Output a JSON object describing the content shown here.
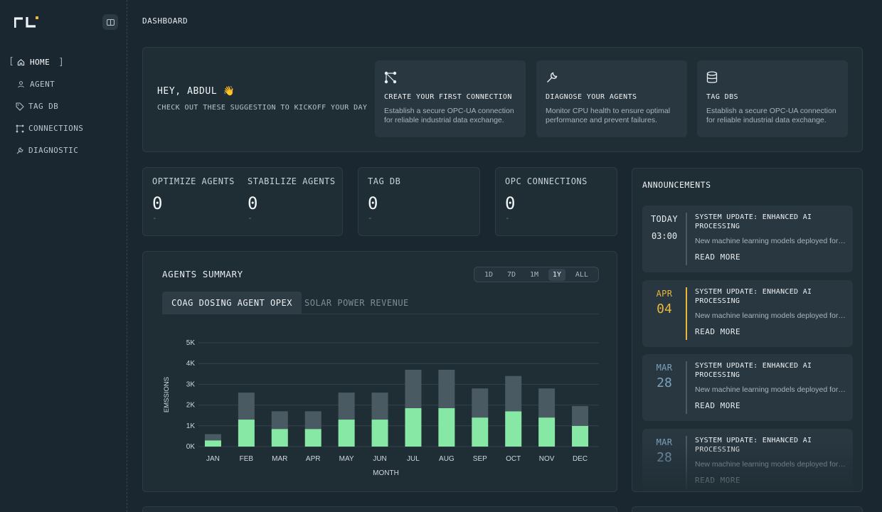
{
  "sidebar": {
    "items": [
      {
        "label": "HOME",
        "icon": "home-icon",
        "active": true
      },
      {
        "label": "AGENT",
        "icon": "user-icon"
      },
      {
        "label": "TAG DB",
        "icon": "tag-icon"
      },
      {
        "label": "CONNECTIONS",
        "icon": "connections-icon"
      },
      {
        "label": "DIAGNOSTIC",
        "icon": "wrench-icon"
      }
    ],
    "active_bracket_open": "[",
    "active_bracket_close": "]"
  },
  "breadcrumb": "DASHBOARD",
  "hero": {
    "greeting": "HEY, ABDUL 👋",
    "subtitle": "CHECK OUT THESE SUGGESTION TO KICKOFF YOUR DAY",
    "suggestions": [
      {
        "title": "CREATE YOUR FIRST CONNECTION",
        "desc": "Establish a secure OPC-UA connection for reliable industrial data exchange.",
        "icon": "nodes-icon"
      },
      {
        "title": "DIAGNOSE YOUR AGENTS",
        "desc": "Monitor CPU health to ensure optimal performance and prevent failures.",
        "icon": "wrench-icon"
      },
      {
        "title": "TAG DBS",
        "desc": "Establish a secure OPC-UA connection for reliable industrial data exchange.",
        "icon": "database-icon"
      }
    ]
  },
  "stats": {
    "optimize": {
      "label": "OPTIMIZE AGENTS",
      "value": "0",
      "delta": "-"
    },
    "stabilize": {
      "label": "STABILIZE AGENTS",
      "value": "0",
      "delta": "-"
    },
    "tagdb": {
      "label": "TAG DB",
      "value": "0",
      "delta": "-"
    },
    "opc": {
      "label": "OPC CONNECTIONS",
      "value": "0",
      "delta": "-"
    }
  },
  "summary": {
    "title": "AGENTS SUMMARY",
    "ranges": [
      "1D",
      "7D",
      "1M",
      "1Y",
      "ALL"
    ],
    "selected_range": "1Y",
    "tabs": [
      "COAG DOSING AGENT OPEX",
      "SOLAR POWER REVENUE"
    ]
  },
  "chart_data": {
    "type": "bar",
    "stacked": true,
    "categories": [
      "JAN",
      "FEB",
      "MAR",
      "APR",
      "MAY",
      "JUN",
      "JUL",
      "AUG",
      "SEP",
      "OCT",
      "NOV",
      "DEC"
    ],
    "series": [
      {
        "values": [
          300,
          1300,
          850,
          850,
          1300,
          1300,
          1850,
          1850,
          1400,
          1700,
          1400,
          1000
        ],
        "color": "#86e8a4"
      },
      {
        "values": [
          300,
          1300,
          850,
          850,
          1300,
          1300,
          1850,
          1850,
          1400,
          1700,
          1400,
          950
        ],
        "color": "#4a5a63"
      }
    ],
    "yticks": [
      "0K",
      "1K",
      "2K",
      "3K",
      "4K",
      "5K"
    ],
    "ylim": [
      0,
      5000
    ],
    "xlabel": "MONTH",
    "ylabel": "EMSSIONS",
    "grid": true
  },
  "announcements": {
    "title": "ANNOUNCEMENTS",
    "items": [
      {
        "d1": "TODAY",
        "d2": "03:00",
        "title": "SYSTEM UPDATE: ENHANCED AI PROCESSING",
        "desc": "New machine learning models deployed for improved accuracy",
        "cta": "READ MORE",
        "accent": "#4b5b65",
        "dcolor": "#e7edf0"
      },
      {
        "d1": "APR",
        "d2": "04",
        "title": "SYSTEM UPDATE: ENHANCED AI PROCESSING",
        "desc": "New machine learning models deployed for improved accuracy",
        "cta": "READ MORE",
        "accent": "#e8b83a",
        "dcolor": "#e8b83a"
      },
      {
        "d1": "MAR",
        "d2": "28",
        "title": "SYSTEM UPDATE: ENHANCED AI PROCESSING",
        "desc": "New machine learning models deployed for improved accuracy",
        "cta": "READ MORE",
        "accent": "#4b5b65",
        "dcolor": "#7fa1bd"
      },
      {
        "d1": "MAR",
        "d2": "28",
        "title": "SYSTEM UPDATE: ENHANCED AI PROCESSING",
        "desc": "New machine learning models deployed for improved accuracy",
        "cta": "READ MORE",
        "accent": "#4b5b65",
        "dcolor": "#7fa1bd"
      }
    ]
  },
  "colors": {
    "accent_green": "#86e8a4",
    "accent_amber": "#e8b83a",
    "logo_accent": "#f0b93c"
  }
}
